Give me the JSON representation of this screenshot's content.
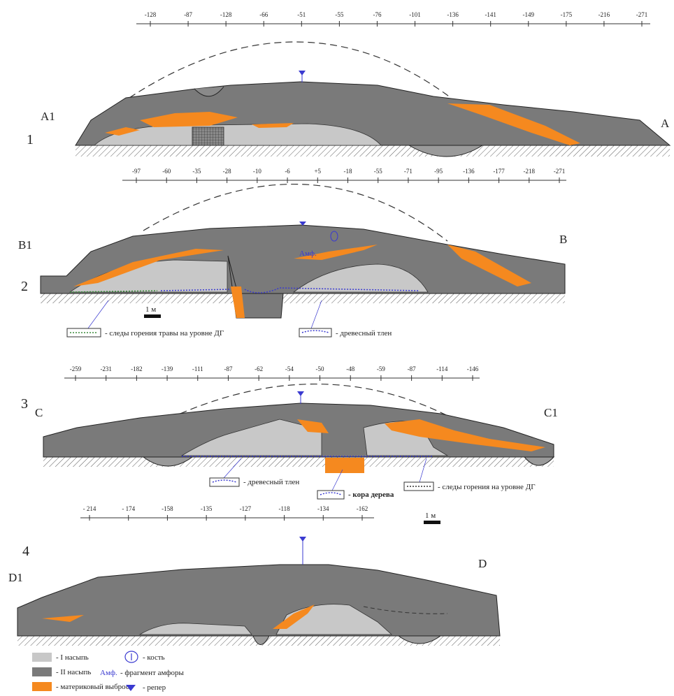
{
  "sections": [
    {
      "number": "1",
      "left_label": "A1",
      "right_label": "A",
      "elevations": [
        "-128",
        "-87",
        "-128",
        "-66",
        "-51",
        "-55",
        "-76",
        "-101",
        "-136",
        "-141",
        "-149",
        "-175",
        "-216",
        "-271"
      ]
    },
    {
      "number": "2",
      "left_label": "B1",
      "right_label": "B",
      "elevations": [
        "-97",
        "-60",
        "-35",
        "-28",
        "-10",
        "-6",
        "+5",
        "-18",
        "-55",
        "-71",
        "-95",
        "-136",
        "-177",
        "-218",
        "-271"
      ],
      "annotation": "Амф.",
      "scale": "1 м",
      "notes": [
        "- следы горения травы на уровне ДГ",
        "- древесный тлен"
      ]
    },
    {
      "number": "3",
      "left_label": "C",
      "right_label": "C1",
      "elevations": [
        "-259",
        "-231",
        "-182",
        "-139",
        "-111",
        "-87",
        "-62",
        "-54",
        "-50",
        "-48",
        "-59",
        "-87",
        "-114",
        "-146"
      ],
      "notes": [
        "- древесный тлен",
        "- кора дерева",
        "- следы горения на уровне ДГ"
      ]
    },
    {
      "number": "4",
      "left_label": "D1",
      "right_label": "D",
      "elevations": [
        "- 214",
        "- 174",
        "-158",
        "-135",
        "-127",
        "-118",
        "-134",
        "-162"
      ],
      "scale": "1 м"
    }
  ],
  "legend": [
    {
      "key": "fill1",
      "label": "- I насыпь",
      "color": "#c8c8c8"
    },
    {
      "key": "fill2",
      "label": "- II насыпь",
      "color": "#7a7a7a"
    },
    {
      "key": "soil",
      "label": "- материковый выброс",
      "color": "#f5891f"
    },
    {
      "key": "bone",
      "label": "- кость"
    },
    {
      "key": "amphora",
      "prefix": "Амф.",
      "label": "- фрагмент амфоры"
    },
    {
      "key": "benchmark",
      "label": "- репер"
    }
  ],
  "colors": {
    "mound_dark": "#7a7a7a",
    "mound_light": "#c8c8c8",
    "orange": "#f5891f",
    "blue": "#3a3ad0",
    "green": "#3a8a3a"
  }
}
